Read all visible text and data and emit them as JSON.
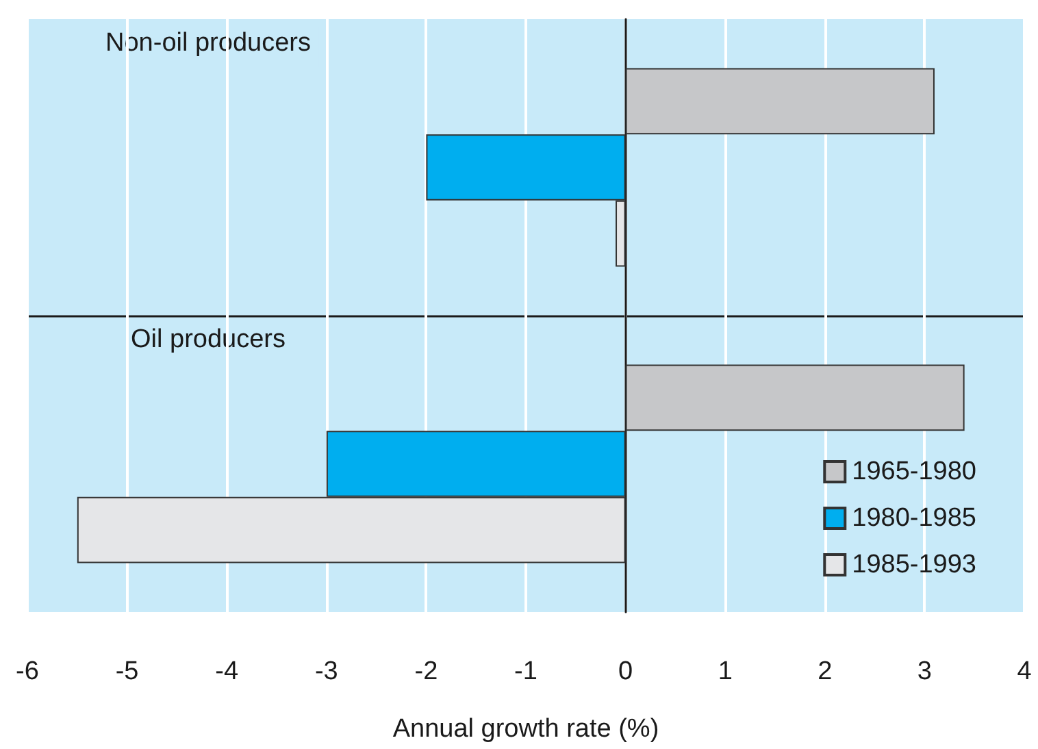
{
  "chart_data": {
    "type": "bar",
    "orientation": "horizontal",
    "categories": [
      "Non-oil producers",
      "Oil producers"
    ],
    "series": [
      {
        "name": "1965-1980",
        "color": "#c6c7c9",
        "values": [
          3.1,
          3.4
        ]
      },
      {
        "name": "1980-1985",
        "color": "#00aeef",
        "values": [
          -2.0,
          -3.0
        ]
      },
      {
        "name": "1985-1993",
        "color": "#e5e6e8",
        "values": [
          -0.1,
          -5.5
        ]
      }
    ],
    "xlim": [
      -6,
      4
    ],
    "xticks": [
      -6,
      -5,
      -4,
      -3,
      -2,
      -1,
      0,
      1,
      2,
      3,
      4
    ],
    "xlabel": "Annual growth rate (%)",
    "grid": "x",
    "legend": "bottom right"
  }
}
